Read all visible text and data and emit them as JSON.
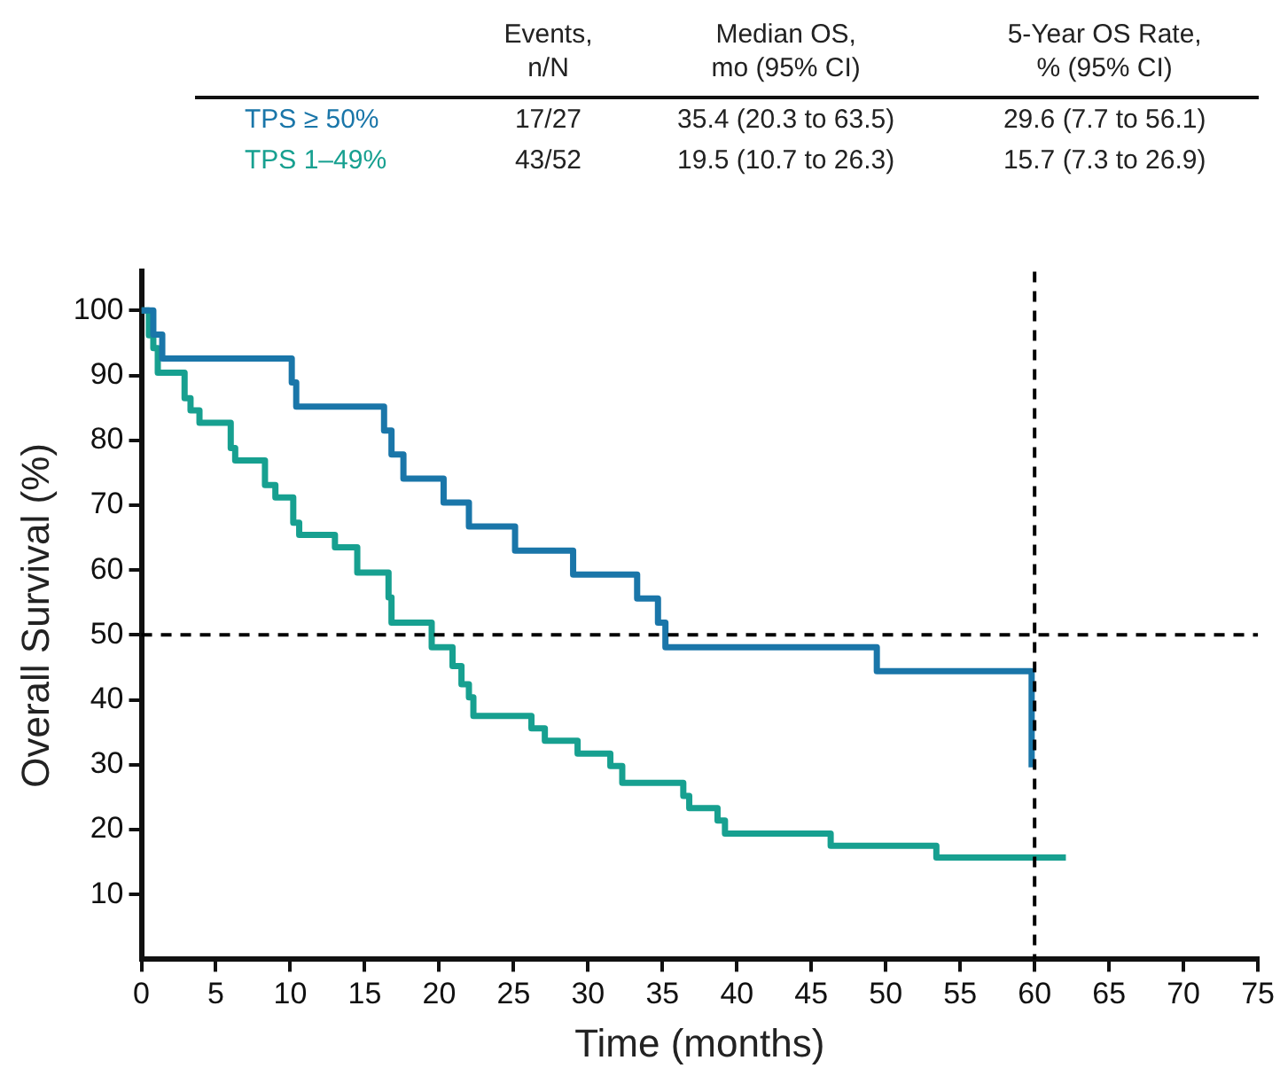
{
  "chart_data": {
    "type": "step",
    "xlabel": "Time (months)",
    "ylabel": "Overall Survival (%)",
    "xlim": [
      0,
      75
    ],
    "xticks": [
      0,
      5,
      10,
      15,
      20,
      25,
      30,
      35,
      40,
      45,
      50,
      55,
      60,
      65,
      70,
      75
    ],
    "ylim": [
      0,
      106
    ],
    "yticks": [
      10,
      20,
      30,
      40,
      50,
      60,
      70,
      80,
      90,
      100
    ],
    "grid": false,
    "legend": "top",
    "line_style": "solid",
    "marker": "none",
    "ref_lines": [
      {
        "axis": "y",
        "value": 50,
        "line_style": "dashed",
        "color": "#000000"
      },
      {
        "axis": "x",
        "value": 60,
        "line_style": "dashed",
        "color": "#000000"
      }
    ],
    "annotations": [
      "Events,\nn/N",
      "Median OS,\nmo (95% CI)",
      "5-Year OS Rate,\n% (95% CI)",
      "17/27",
      "35.4 (20.3 to 63.5)",
      "29.6 (7.7 to 56.1)",
      "43/52",
      "19.5 (10.7 to 26.3)",
      "15.7 (7.3 to 26.9)"
    ],
    "series": [
      {
        "name": "TPS ≥ 50%",
        "color": "#1a76a9",
        "x": [
          0,
          0.8,
          1.4,
          10.1,
          10.4,
          16.3,
          16.8,
          17.6,
          20.3,
          22,
          25.1,
          29,
          33.3,
          34.7,
          35.2,
          49.4,
          59.8
        ],
        "values": [
          100,
          96.3,
          92.6,
          88.9,
          85.2,
          81.5,
          77.8,
          74.1,
          70.4,
          66.7,
          63,
          59.3,
          55.6,
          51.9,
          48.1,
          44.4,
          29.6
        ]
      },
      {
        "name": "TPS 1–49%",
        "color": "#17a090",
        "x": [
          0,
          0.5,
          0.8,
          1.1,
          2.9,
          3.3,
          3.9,
          6,
          6.3,
          8.3,
          9,
          10.2,
          10.6,
          13,
          14.5,
          16.6,
          16.8,
          19.5,
          20.9,
          21.5,
          22,
          22.3,
          26.2,
          27.1,
          29.3,
          31.5,
          32.3,
          36.4,
          36.8,
          38.7,
          39.2,
          46.3,
          53.4,
          62.1
        ],
        "values": [
          100,
          96.2,
          94.2,
          90.4,
          86.5,
          84.6,
          82.7,
          78.8,
          76.9,
          73.1,
          71.2,
          67.3,
          65.4,
          63.5,
          59.6,
          55.8,
          51.9,
          48.1,
          45.2,
          42.4,
          40.4,
          37.5,
          35.6,
          33.7,
          31.7,
          29.8,
          27.2,
          25.2,
          23.3,
          21.4,
          19.4,
          17.5,
          15.7,
          15.7
        ]
      }
    ]
  }
}
